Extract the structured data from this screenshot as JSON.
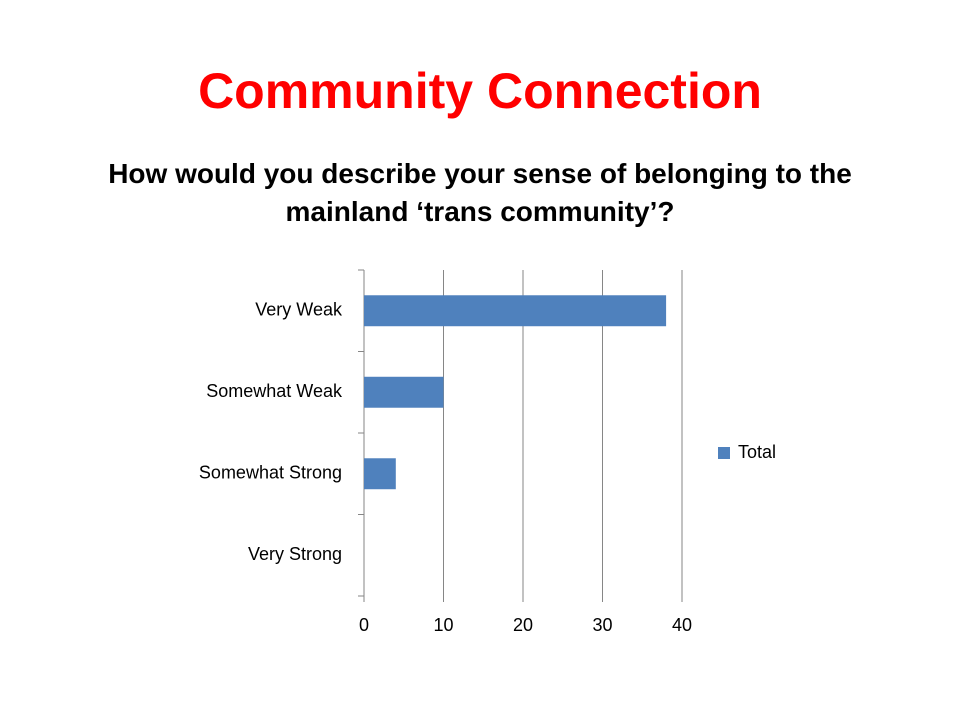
{
  "chart_data": {
    "type": "barh",
    "title": "Community Connection",
    "subtitle": "How would you describe your sense of belonging to the mainland ‘trans community’?",
    "categories": [
      "Very Weak",
      "Somewhat Weak",
      "Somewhat Strong",
      "Very Strong"
    ],
    "series": [
      {
        "name": "Total",
        "color": "#4f81bd",
        "values": [
          38,
          10,
          4,
          0
        ]
      }
    ],
    "xlim": [
      0,
      40
    ],
    "xticks": [
      0,
      10,
      20,
      30,
      40
    ],
    "grid": true,
    "legend": "right"
  }
}
